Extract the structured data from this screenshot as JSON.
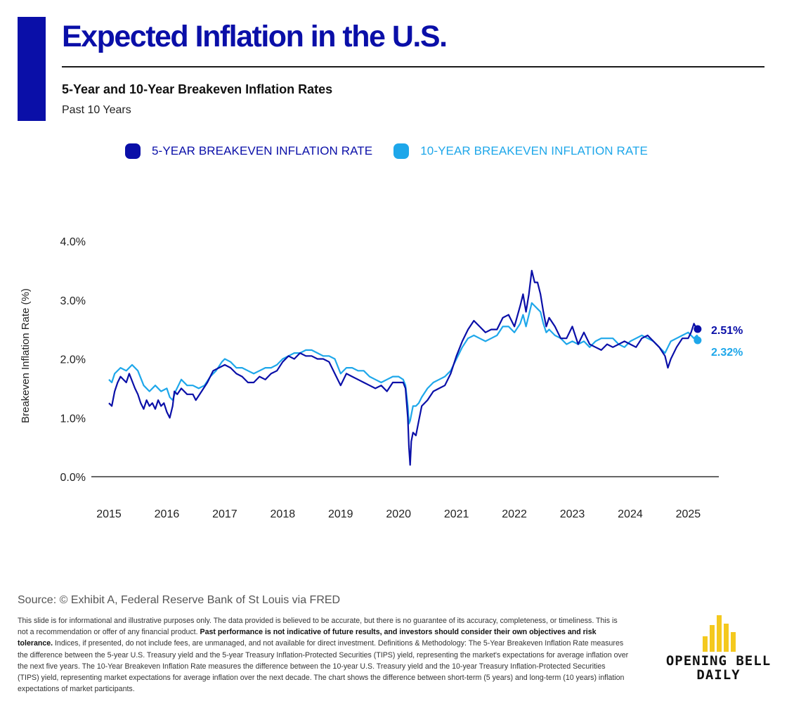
{
  "header": {
    "title": "Expected Inflation in the U.S.",
    "subtitle": "5-Year and 10-Year Breakeven Inflation Rates",
    "period": "Past 10 Years"
  },
  "colors": {
    "accent": "#0a0fa8",
    "series_5y": "#0a0fa8",
    "series_10y": "#1ea7ea",
    "logo": "#f4c91e"
  },
  "chart_data": {
    "type": "line",
    "ylabel": "Breakeven Inflation Rate (%)",
    "ylim": [
      0,
      4
    ],
    "yticks": [
      "0.0%",
      "1.0%",
      "2.0%",
      "3.0%",
      "4.0%"
    ],
    "xlim": [
      2015,
      2025.6
    ],
    "xticks": [
      "2015",
      "2016",
      "2017",
      "2018",
      "2019",
      "2020",
      "2021",
      "2022",
      "2023",
      "2024",
      "2025"
    ],
    "grid": false,
    "legend_position": "top",
    "series": [
      {
        "name": "5-YEAR BREAKEVEN INFLATION RATE",
        "color": "#0a0fa8",
        "end_label": "2.51%",
        "x": [
          2015.0,
          2015.05,
          2015.1,
          2015.15,
          2015.2,
          2015.3,
          2015.35,
          2015.45,
          2015.5,
          2015.55,
          2015.6,
          2015.65,
          2015.7,
          2015.75,
          2015.8,
          2015.85,
          2015.9,
          2015.95,
          2016.0,
          2016.05,
          2016.1,
          2016.13,
          2016.18,
          2016.25,
          2016.35,
          2016.45,
          2016.5,
          2016.6,
          2016.7,
          2016.8,
          2016.9,
          2017.0,
          2017.1,
          2017.2,
          2017.3,
          2017.4,
          2017.5,
          2017.6,
          2017.7,
          2017.8,
          2017.9,
          2018.0,
          2018.1,
          2018.2,
          2018.3,
          2018.4,
          2018.5,
          2018.6,
          2018.7,
          2018.8,
          2018.9,
          2019.0,
          2019.1,
          2019.2,
          2019.3,
          2019.4,
          2019.5,
          2019.6,
          2019.7,
          2019.8,
          2019.9,
          2020.0,
          2020.08,
          2020.12,
          2020.16,
          2020.18,
          2020.2,
          2020.22,
          2020.25,
          2020.3,
          2020.35,
          2020.4,
          2020.5,
          2020.6,
          2020.7,
          2020.8,
          2020.9,
          2021.0,
          2021.1,
          2021.2,
          2021.3,
          2021.4,
          2021.5,
          2021.6,
          2021.7,
          2021.8,
          2021.9,
          2022.0,
          2022.1,
          2022.15,
          2022.2,
          2022.25,
          2022.3,
          2022.35,
          2022.4,
          2022.45,
          2022.5,
          2022.55,
          2022.6,
          2022.7,
          2022.8,
          2022.9,
          2023.0,
          2023.1,
          2023.2,
          2023.3,
          2023.4,
          2023.5,
          2023.6,
          2023.7,
          2023.8,
          2023.9,
          2024.0,
          2024.1,
          2024.2,
          2024.3,
          2024.4,
          2024.5,
          2024.6,
          2024.65,
          2024.7,
          2024.8,
          2024.9,
          2025.0,
          2025.05,
          2025.1,
          2025.15,
          2025.2
        ],
        "values": [
          1.25,
          1.2,
          1.45,
          1.6,
          1.7,
          1.6,
          1.75,
          1.5,
          1.4,
          1.25,
          1.15,
          1.3,
          1.2,
          1.25,
          1.15,
          1.3,
          1.2,
          1.25,
          1.1,
          1.0,
          1.2,
          1.45,
          1.4,
          1.5,
          1.4,
          1.4,
          1.3,
          1.45,
          1.6,
          1.8,
          1.85,
          1.9,
          1.85,
          1.75,
          1.7,
          1.6,
          1.6,
          1.7,
          1.65,
          1.75,
          1.8,
          1.95,
          2.05,
          2.0,
          2.1,
          2.05,
          2.05,
          2.0,
          2.0,
          1.95,
          1.75,
          1.55,
          1.75,
          1.7,
          1.65,
          1.6,
          1.55,
          1.5,
          1.55,
          1.45,
          1.6,
          1.6,
          1.6,
          1.5,
          1.0,
          0.5,
          0.2,
          0.6,
          0.75,
          0.7,
          0.95,
          1.2,
          1.3,
          1.45,
          1.5,
          1.55,
          1.75,
          2.05,
          2.3,
          2.5,
          2.65,
          2.55,
          2.45,
          2.5,
          2.5,
          2.7,
          2.75,
          2.55,
          2.9,
          3.1,
          2.8,
          3.1,
          3.5,
          3.3,
          3.3,
          3.1,
          2.8,
          2.55,
          2.7,
          2.55,
          2.35,
          2.35,
          2.55,
          2.25,
          2.45,
          2.25,
          2.2,
          2.15,
          2.25,
          2.2,
          2.25,
          2.3,
          2.25,
          2.2,
          2.35,
          2.4,
          2.3,
          2.2,
          2.05,
          1.85,
          2.0,
          2.2,
          2.35,
          2.35,
          2.45,
          2.6,
          2.5,
          2.51
        ]
      },
      {
        "name": "10-YEAR BREAKEVEN INFLATION RATE",
        "color": "#1ea7ea",
        "end_label": "2.32%",
        "x": [
          2015.0,
          2015.05,
          2015.1,
          2015.2,
          2015.3,
          2015.4,
          2015.5,
          2015.6,
          2015.7,
          2015.8,
          2015.9,
          2016.0,
          2016.05,
          2016.1,
          2016.15,
          2016.25,
          2016.35,
          2016.45,
          2016.55,
          2016.65,
          2016.75,
          2016.85,
          2016.95,
          2017.0,
          2017.1,
          2017.2,
          2017.3,
          2017.4,
          2017.5,
          2017.6,
          2017.7,
          2017.8,
          2017.9,
          2018.0,
          2018.1,
          2018.2,
          2018.3,
          2018.4,
          2018.5,
          2018.6,
          2018.7,
          2018.8,
          2018.9,
          2019.0,
          2019.1,
          2019.2,
          2019.3,
          2019.4,
          2019.5,
          2019.6,
          2019.7,
          2019.8,
          2019.9,
          2020.0,
          2020.08,
          2020.12,
          2020.16,
          2020.18,
          2020.2,
          2020.22,
          2020.25,
          2020.3,
          2020.35,
          2020.4,
          2020.5,
          2020.6,
          2020.7,
          2020.8,
          2020.9,
          2021.0,
          2021.1,
          2021.2,
          2021.3,
          2021.4,
          2021.5,
          2021.6,
          2021.7,
          2021.8,
          2021.9,
          2022.0,
          2022.1,
          2022.15,
          2022.2,
          2022.25,
          2022.3,
          2022.35,
          2022.4,
          2022.45,
          2022.5,
          2022.55,
          2022.6,
          2022.7,
          2022.8,
          2022.9,
          2023.0,
          2023.1,
          2023.2,
          2023.3,
          2023.4,
          2023.5,
          2023.6,
          2023.7,
          2023.8,
          2023.9,
          2024.0,
          2024.1,
          2024.2,
          2024.3,
          2024.4,
          2024.5,
          2024.6,
          2024.65,
          2024.7,
          2024.8,
          2024.9,
          2025.0,
          2025.05,
          2025.1,
          2025.15,
          2025.2
        ],
        "values": [
          1.65,
          1.6,
          1.75,
          1.85,
          1.8,
          1.9,
          1.8,
          1.55,
          1.45,
          1.55,
          1.45,
          1.5,
          1.35,
          1.3,
          1.45,
          1.65,
          1.55,
          1.55,
          1.5,
          1.55,
          1.7,
          1.8,
          1.95,
          2.0,
          1.95,
          1.85,
          1.85,
          1.8,
          1.75,
          1.8,
          1.85,
          1.85,
          1.9,
          2.0,
          2.05,
          2.1,
          2.1,
          2.15,
          2.15,
          2.1,
          2.05,
          2.05,
          2.0,
          1.75,
          1.85,
          1.85,
          1.8,
          1.8,
          1.7,
          1.65,
          1.6,
          1.65,
          1.7,
          1.7,
          1.65,
          1.55,
          1.2,
          0.9,
          0.95,
          1.05,
          1.2,
          1.2,
          1.25,
          1.35,
          1.5,
          1.6,
          1.65,
          1.7,
          1.8,
          2.0,
          2.2,
          2.35,
          2.4,
          2.35,
          2.3,
          2.35,
          2.4,
          2.55,
          2.55,
          2.45,
          2.6,
          2.75,
          2.55,
          2.75,
          2.95,
          2.9,
          2.85,
          2.8,
          2.6,
          2.45,
          2.5,
          2.4,
          2.35,
          2.25,
          2.3,
          2.25,
          2.3,
          2.2,
          2.3,
          2.35,
          2.35,
          2.35,
          2.25,
          2.2,
          2.3,
          2.35,
          2.4,
          2.35,
          2.3,
          2.2,
          2.1,
          2.2,
          2.3,
          2.35,
          2.4,
          2.45,
          2.4,
          2.35,
          2.4,
          2.32
        ]
      }
    ]
  },
  "footer": {
    "source": "Source: © Exhibit A, Federal Reserve Bank of St Louis via FRED",
    "disclaimer_1": "This slide is for informational and illustrative purposes only. The data provided is believed to be accurate, but there is no guarantee of its accuracy, completeness, or timeliness. This is not a recommendation or offer of any financial product. ",
    "disclaimer_bold": "Past performance is not indicative of future results, and investors should consider their own objectives and risk tolerance.",
    "disclaimer_2": " Indices, if presented, do not include fees, are unmanaged, and not available for direct investment. Definitions & Methodology: The 5-Year Breakeven Inflation Rate measures the difference between the 5-year U.S. Treasury yield and the 5-year Treasury Inflation-Protected Securities (TIPS) yield, representing the market's expectations for average inflation over the next five years. The 10-Year Breakeven Inflation Rate measures the difference between the 10-year U.S. Treasury yield and the 10-year Treasury Inflation-Protected Securities (TIPS) yield, representing market expectations for average inflation over the next decade. The chart shows the difference between short-term (5 years) and long-term (10 years) inflation expectations of market participants."
  },
  "logo": {
    "line1": "OPENING BELL",
    "line2": "DAILY"
  }
}
